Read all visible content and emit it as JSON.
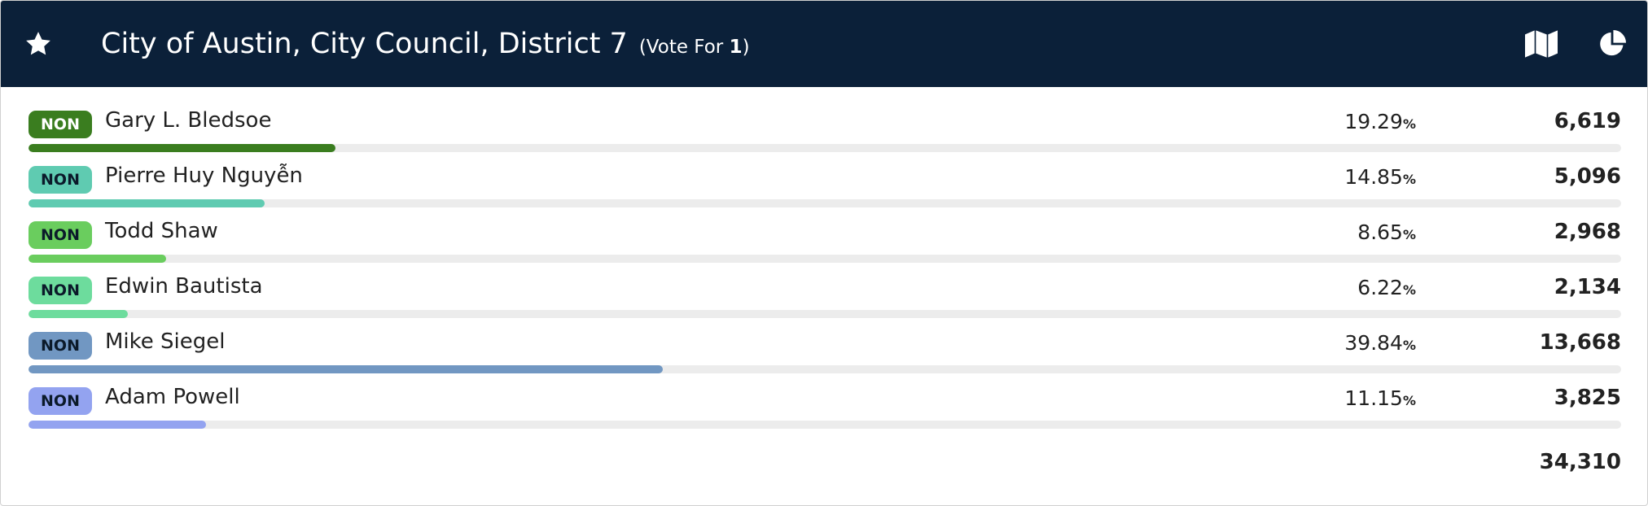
{
  "header": {
    "title": "City of Austin, City Council, District 7",
    "vote_for_label": "(Vote For",
    "vote_for_number": "1",
    "vote_for_close": ")"
  },
  "percent_symbol": "%",
  "candidates": [
    {
      "party": "NON",
      "name": "Gary L. Bledsoe",
      "percent": 19.29,
      "votes": "6,619",
      "color": "#3a7d1f",
      "badge_text_color": "#ffffff"
    },
    {
      "party": "NON",
      "name": "Pierre Huy Nguyễn",
      "percent": 14.85,
      "votes": "5,096",
      "color": "#5fcbb1",
      "badge_text_color": "#0b1a2a"
    },
    {
      "party": "NON",
      "name": "Todd Shaw",
      "percent": 8.65,
      "votes": "2,968",
      "color": "#6acd5e",
      "badge_text_color": "#0b1a2a"
    },
    {
      "party": "NON",
      "name": "Edwin Bautista",
      "percent": 6.22,
      "votes": "2,134",
      "color": "#6ddc9d",
      "badge_text_color": "#0b1a2a"
    },
    {
      "party": "NON",
      "name": "Mike Siegel",
      "percent": 39.84,
      "votes": "13,668",
      "color": "#7197c2",
      "badge_text_color": "#0b1a2a"
    },
    {
      "party": "NON",
      "name": "Adam Powell",
      "percent": 11.15,
      "votes": "3,825",
      "color": "#93a3f0",
      "badge_text_color": "#0b1a2a"
    }
  ],
  "total_votes": "34,310"
}
